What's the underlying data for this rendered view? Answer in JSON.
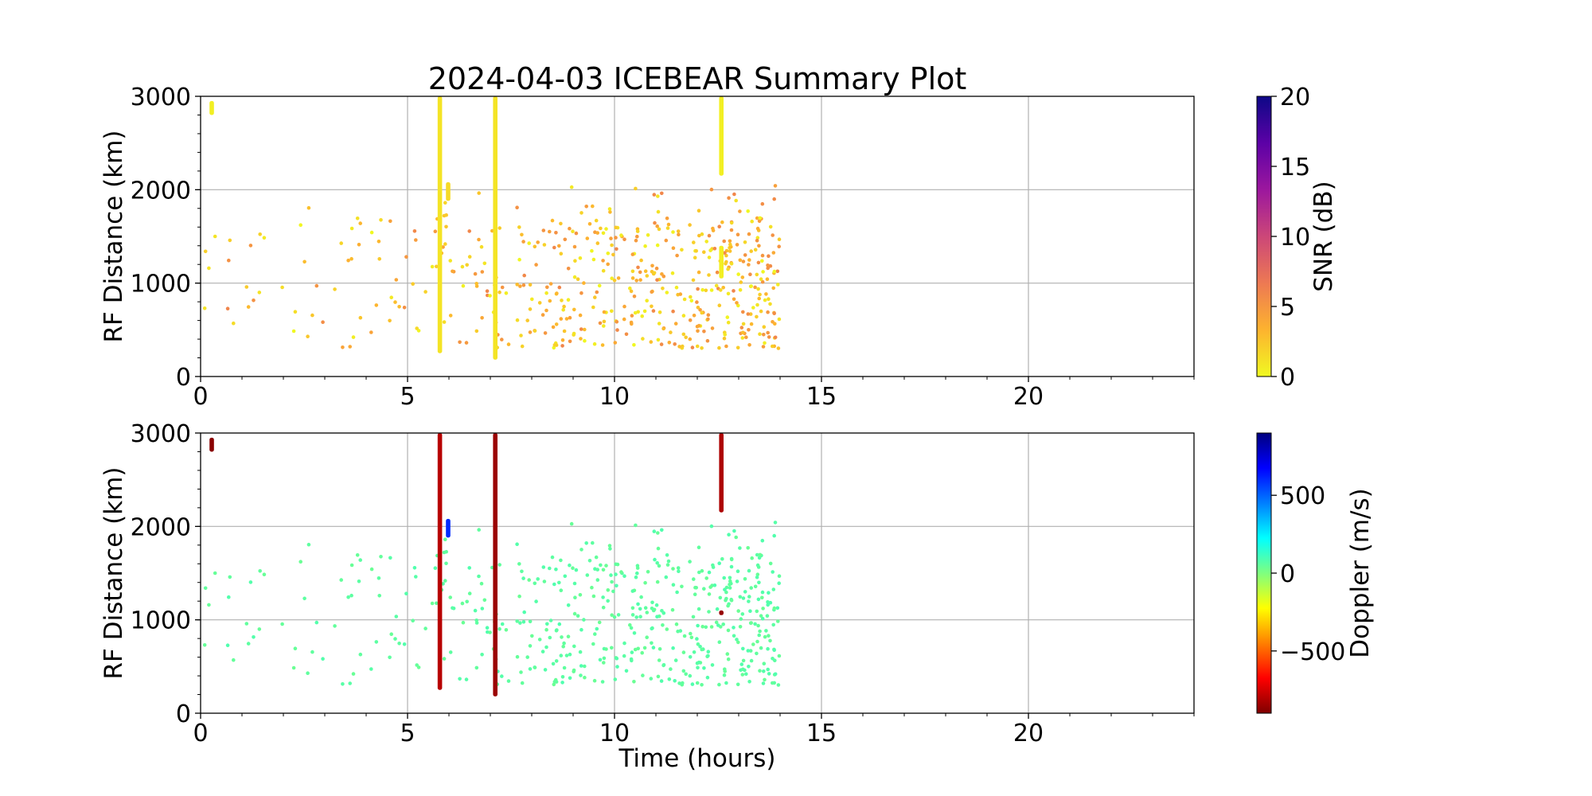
{
  "title": "2024-04-03 ICEBEAR Summary Plot",
  "xlabel": "Time (hours)",
  "chart_data": [
    {
      "type": "scatter",
      "name": "snr-panel",
      "ylabel": "RF Distance (km)",
      "xlim": [
        0,
        24
      ],
      "ylim": [
        0,
        3000
      ],
      "xticks": [
        "0",
        "5",
        "10",
        "15",
        "20"
      ],
      "yticks": [
        "0",
        "1000",
        "2000",
        "3000"
      ],
      "grid": true,
      "colorbar": {
        "label": "SNR (dB)",
        "range": [
          0,
          20
        ],
        "ticks": [
          "0",
          "5",
          "10",
          "15",
          "20"
        ],
        "colormap": "plasma_r",
        "colors": [
          "#f0f921",
          "#fdb32f",
          "#ed7953",
          "#cc4778",
          "#9c179e",
          "#5c01a6",
          "#0d0887"
        ]
      },
      "streaks": [
        {
          "x": 0.27,
          "y0": 2800,
          "y1": 2950,
          "value": 0.5
        },
        {
          "x": 5.78,
          "y0": 250,
          "y1": 3000,
          "value": 1
        },
        {
          "x": 5.98,
          "y0": 1880,
          "y1": 2080,
          "value": 1.5
        },
        {
          "x": 7.12,
          "y0": 180,
          "y1": 3000,
          "value": 1
        },
        {
          "x": 12.58,
          "y0": 2150,
          "y1": 3000,
          "value": 0.5
        },
        {
          "x": 12.58,
          "y0": 1050,
          "y1": 1400,
          "value": 0.5
        }
      ]
    },
    {
      "type": "scatter",
      "name": "doppler-panel",
      "ylabel": "RF Distance (km)",
      "xlim": [
        0,
        24
      ],
      "ylim": [
        0,
        3000
      ],
      "xticks": [
        "0",
        "5",
        "10",
        "15",
        "20"
      ],
      "yticks": [
        "0",
        "1000",
        "2000",
        "3000"
      ],
      "grid": true,
      "colorbar": {
        "label": "Doppler (m/s)",
        "range": [
          -900,
          900
        ],
        "ticks": [
          {
            "value": -500,
            "label": "−500"
          },
          {
            "value": 0,
            "label": "0"
          },
          {
            "value": 500,
            "label": "500"
          }
        ],
        "colormap": "jet_r",
        "colors": [
          "#7f0000",
          "#ff0000",
          "#ff7f00",
          "#ffff00",
          "#7fff7f",
          "#00ffff",
          "#007fff",
          "#0000ff",
          "#00007f"
        ]
      },
      "streaks": [
        {
          "x": 0.27,
          "y0": 2800,
          "y1": 2950,
          "value": -880
        },
        {
          "x": 5.78,
          "y0": 250,
          "y1": 3000,
          "value": -800
        },
        {
          "x": 5.98,
          "y0": 1880,
          "y1": 2080,
          "value": 600
        },
        {
          "x": 7.12,
          "y0": 180,
          "y1": 3000,
          "value": -850
        },
        {
          "x": 12.58,
          "y0": 2150,
          "y1": 3000,
          "value": -820
        },
        {
          "x": 12.58,
          "y0": 1050,
          "y1": 1100,
          "value": -860
        }
      ],
      "scatter_value": 60
    }
  ]
}
